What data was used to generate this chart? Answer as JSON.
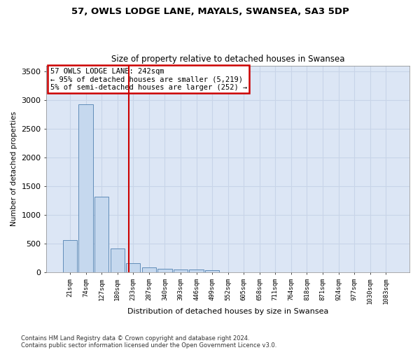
{
  "title1": "57, OWLS LODGE LANE, MAYALS, SWANSEA, SA3 5DP",
  "title2": "Size of property relative to detached houses in Swansea",
  "xlabel": "Distribution of detached houses by size in Swansea",
  "ylabel": "Number of detached properties",
  "footnote1": "Contains HM Land Registry data © Crown copyright and database right 2024.",
  "footnote2": "Contains public sector information licensed under the Open Government Licence v3.0.",
  "bin_labels": [
    "21sqm",
    "74sqm",
    "127sqm",
    "180sqm",
    "233sqm",
    "287sqm",
    "340sqm",
    "393sqm",
    "446sqm",
    "499sqm",
    "552sqm",
    "605sqm",
    "658sqm",
    "711sqm",
    "764sqm",
    "818sqm",
    "871sqm",
    "924sqm",
    "977sqm",
    "1030sqm",
    "1083sqm"
  ],
  "bar_values": [
    560,
    2920,
    1320,
    415,
    155,
    90,
    60,
    50,
    45,
    40,
    0,
    0,
    0,
    0,
    0,
    0,
    0,
    0,
    0,
    0,
    0
  ],
  "bar_color": "#c5d8ee",
  "bar_edge_color": "#5080b0",
  "grid_color": "#c8d4e8",
  "background_color": "#dce6f5",
  "vline_color": "#cc0000",
  "vline_pos": 3.72,
  "annotation_line1": "57 OWLS LODGE LANE: 242sqm",
  "annotation_line2": "← 95% of detached houses are smaller (5,219)",
  "annotation_line3": "5% of semi-detached houses are larger (252) →",
  "annotation_box_color": "#cc0000",
  "ylim": [
    0,
    3600
  ],
  "yticks": [
    0,
    500,
    1000,
    1500,
    2000,
    2500,
    3000,
    3500
  ]
}
